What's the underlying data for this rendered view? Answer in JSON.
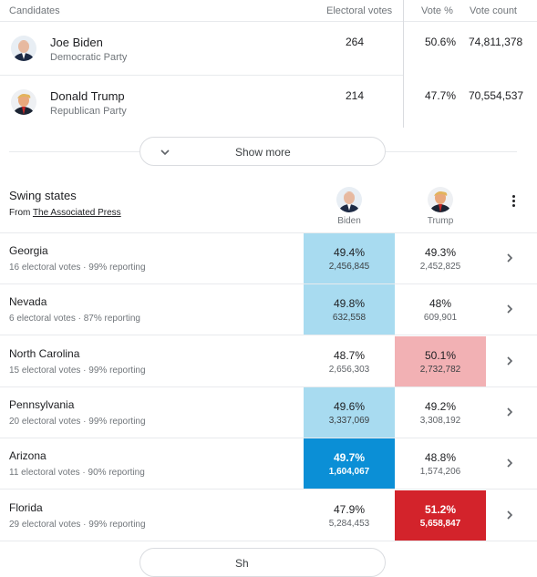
{
  "header": {
    "candidates": "Candidates",
    "electoral_votes": "Electoral votes",
    "vote_pct": "Vote %",
    "vote_count": "Vote count"
  },
  "candidates": [
    {
      "name": "Joe Biden",
      "party": "Democratic Party",
      "electoral": "264",
      "pct": "50.6%",
      "count": "74,811,378",
      "avatar_icon": "biden-photo"
    },
    {
      "name": "Donald Trump",
      "party": "Republican Party",
      "electoral": "214",
      "pct": "47.7%",
      "count": "70,554,537",
      "avatar_icon": "trump-photo"
    }
  ],
  "show_more": "Show more",
  "swing": {
    "title": "Swing states",
    "from": "From",
    "source": "The Associated Press",
    "col_biden": "Biden",
    "col_trump": "Trump"
  },
  "states": [
    {
      "name": "Georgia",
      "desc": "16 electoral votes",
      "reporting": "99% reporting",
      "biden_pct": "49.4%",
      "biden_count": "2,456,845",
      "trump_pct": "49.3%",
      "trump_count": "2,452,825",
      "winner": "biden",
      "strength": "light"
    },
    {
      "name": "Nevada",
      "desc": "6 electoral votes",
      "reporting": "87% reporting",
      "biden_pct": "49.8%",
      "biden_count": "632,558",
      "trump_pct": "48%",
      "trump_count": "609,901",
      "winner": "biden",
      "strength": "light"
    },
    {
      "name": "North Carolina",
      "desc": "15 electoral votes",
      "reporting": "99% reporting",
      "biden_pct": "48.7%",
      "biden_count": "2,656,303",
      "trump_pct": "50.1%",
      "trump_count": "2,732,782",
      "winner": "trump",
      "strength": "light"
    },
    {
      "name": "Pennsylvania",
      "desc": "20 electoral votes",
      "reporting": "99% reporting",
      "biden_pct": "49.6%",
      "biden_count": "3,337,069",
      "trump_pct": "49.2%",
      "trump_count": "3,308,192",
      "winner": "biden",
      "strength": "light"
    },
    {
      "name": "Arizona",
      "desc": "11 electoral votes",
      "reporting": "90% reporting",
      "biden_pct": "49.7%",
      "biden_count": "1,604,067",
      "trump_pct": "48.8%",
      "trump_count": "1,574,206",
      "winner": "biden",
      "strength": "strong"
    },
    {
      "name": "Florida",
      "desc": "29 electoral votes",
      "reporting": "99% reporting",
      "biden_pct": "47.9%",
      "biden_count": "5,284,453",
      "trump_pct": "51.2%",
      "trump_count": "5,658,847",
      "winner": "trump",
      "strength": "strong"
    }
  ],
  "bottom_pill": "Sh",
  "colors": {
    "biden_light": "#a8dbf0",
    "biden_strong": "#0b8fd6",
    "trump_light": "#f2b1b4",
    "trump_strong": "#d3232b"
  }
}
